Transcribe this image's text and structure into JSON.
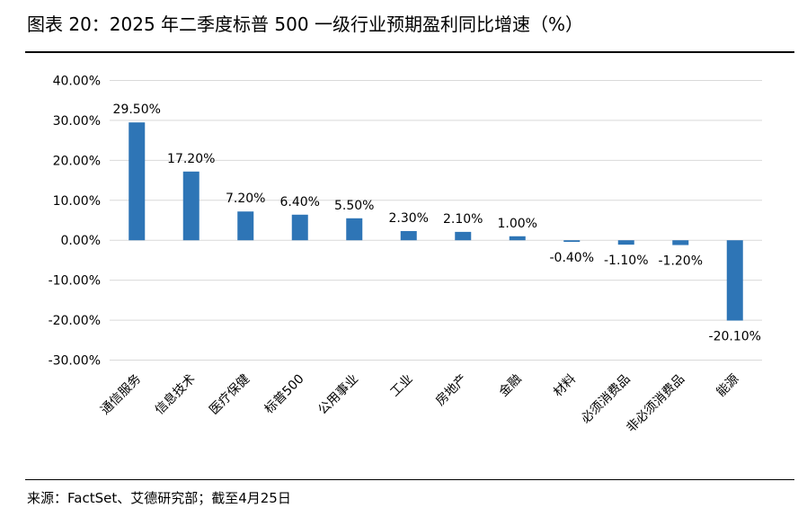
{
  "title": "图表 20：2025 年二季度标普 500 一级行业预期盈利同比增速（%）",
  "source": "来源：FactSet、艾德研究部；截至4月25日",
  "chart_data": {
    "type": "bar",
    "categories": [
      "通信服务",
      "信息技术",
      "医疗保健",
      "标普500",
      "公用事业",
      "工业",
      "房地产",
      "金融",
      "材料",
      "必须消费品",
      "非必须消费品",
      "能源"
    ],
    "values": [
      29.5,
      17.2,
      7.2,
      6.4,
      5.5,
      2.3,
      2.1,
      1.0,
      -0.4,
      -1.1,
      -1.2,
      -20.1
    ],
    "data_labels": [
      "29.50%",
      "17.20%",
      "7.20%",
      "6.40%",
      "5.50%",
      "2.30%",
      "2.10%",
      "1.00%",
      "-0.40%",
      "-1.10%",
      "-1.20%",
      "-20.10%"
    ],
    "y_ticks": [
      40,
      30,
      20,
      10,
      0,
      -10,
      -20,
      -30
    ],
    "y_tick_labels": [
      "40.00%",
      "30.00%",
      "20.00%",
      "10.00%",
      "0.00%",
      "-10.00%",
      "-20.00%",
      "-30.00%"
    ],
    "ylim": [
      -30,
      40
    ],
    "grid": true,
    "bar_color": "#2E75B6",
    "grid_color": "#D9D9D9"
  }
}
